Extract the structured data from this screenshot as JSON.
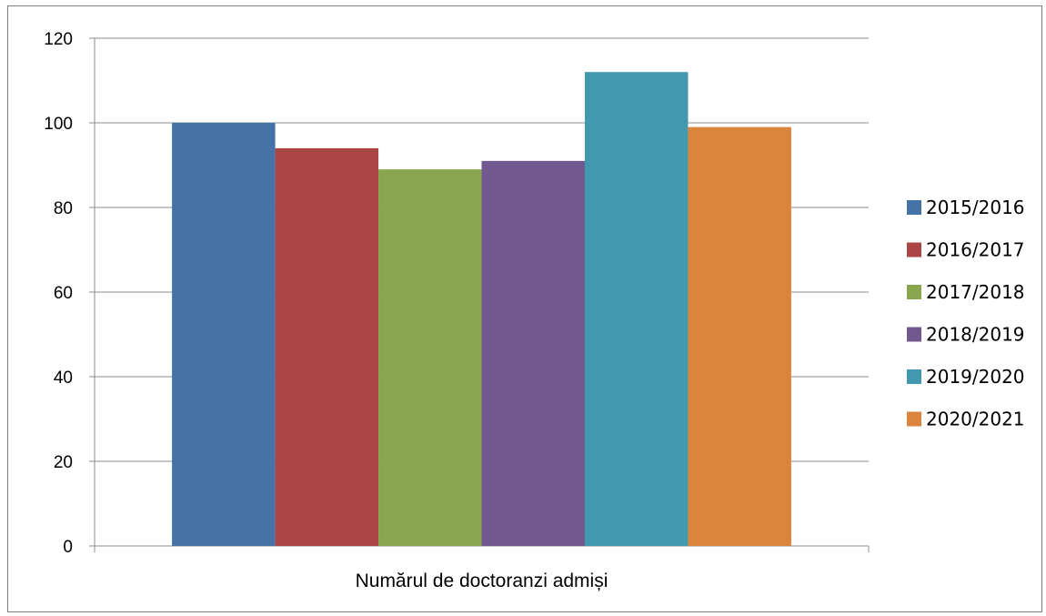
{
  "chart_data": {
    "type": "bar",
    "categories": [
      "Numărul de doctoranzi admiși"
    ],
    "series": [
      {
        "name": "2015/2016",
        "values": [
          100
        ],
        "color": "#4572A7"
      },
      {
        "name": "2016/2017",
        "values": [
          94
        ],
        "color": "#AA4643"
      },
      {
        "name": "2017/2018",
        "values": [
          89
        ],
        "color": "#89A54E"
      },
      {
        "name": "2018/2019",
        "values": [
          91
        ],
        "color": "#71588F"
      },
      {
        "name": "2019/2020",
        "values": [
          112
        ],
        "color": "#4198AF"
      },
      {
        "name": "2020/2021",
        "values": [
          99
        ],
        "color": "#DB843D"
      }
    ],
    "ylim": [
      0,
      120
    ],
    "yticks": [
      "0",
      "20",
      "40",
      "60",
      "80",
      "100",
      "120"
    ],
    "grid": true,
    "legend_position": "right"
  }
}
